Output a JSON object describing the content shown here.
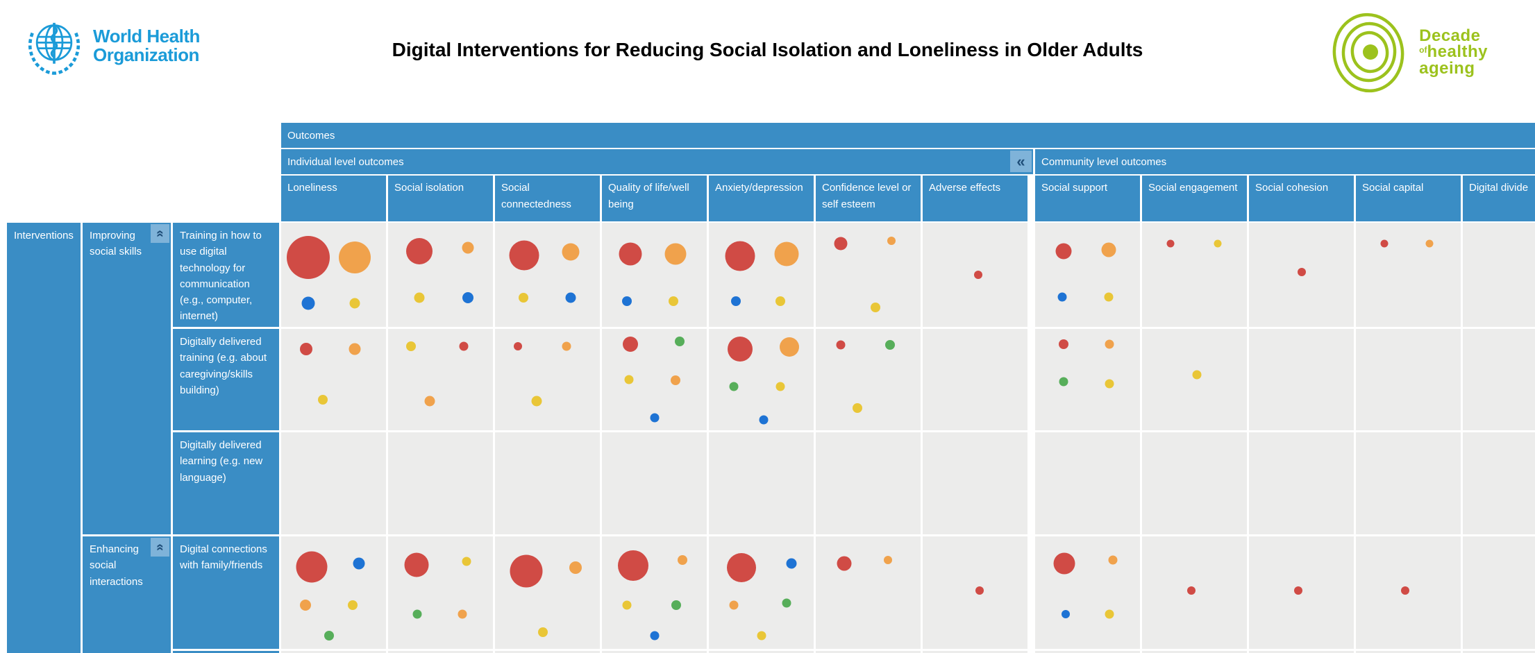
{
  "header": {
    "who_line1": "World Health",
    "who_line2": "Organization",
    "title": "Digital Interventions for Reducing Social Isolation and Loneliness in Older Adults",
    "decade_word1": "Decade",
    "decade_word2": "of",
    "decade_word3": "healthy",
    "decade_word4": "ageing"
  },
  "icons": {
    "collapse_left": "«",
    "collapse_up": "«"
  },
  "matrix": {
    "outcomes_label": "Outcomes",
    "interventions_label": "Interventions",
    "column_groups": [
      {
        "label": "Individual level outcomes",
        "span": 7
      },
      {
        "label": "Community level outcomes",
        "span": 5
      }
    ],
    "row_groups": [
      {
        "label": "Improving social skills",
        "row_start": 0,
        "row_end": 2
      },
      {
        "label": "Enhancing social interactions",
        "row_start": 3,
        "row_end": 3
      }
    ]
  },
  "colors": {
    "header_blue": "#3a8dc5",
    "cell_bg": "#ececeb",
    "collapse_btn_bg": "#7fb3d9",
    "collapse_btn_glyph": "#1f4e79",
    "who_blue": "#1b9bd8",
    "decade_green": "#9cc21d",
    "bubbles": {
      "red": "#d04b45",
      "orange": "#f0a24c",
      "yellow": "#e9c637",
      "blue": "#1e73d4",
      "green": "#57ae5a"
    }
  },
  "chart_data": {
    "type": "heatmap",
    "subtype": "bubble-evidence-gap-map",
    "title": "Digital Interventions for Reducing Social Isolation and Loneliness in Older Adults",
    "legend_visible": false,
    "note": "Bubble color = evidence category; bubble diameter (px) = relative volume of evidence; positions are percent offsets within each cell.",
    "columns": [
      "Loneliness",
      "Social isolation",
      "Social connectedness",
      "Quality of life/well being",
      "Anxiety/depression",
      "Confidence level or self esteem",
      "Adverse effects",
      "Social support",
      "Social engagement",
      "Social cohesion",
      "Social capital",
      "Digital divide"
    ],
    "rows": [
      {
        "group": "Improving social skills",
        "label": "Training in how to use digital technology for communication (e.g., computer, internet)",
        "cells": [
          [
            {
              "c": "red",
              "d": 62,
              "x": 26,
              "y": 33
            },
            {
              "c": "orange",
              "d": 46,
              "x": 70,
              "y": 33
            },
            {
              "c": "blue",
              "d": 19,
              "x": 26,
              "y": 77
            },
            {
              "c": "yellow",
              "d": 15,
              "x": 70,
              "y": 77
            }
          ],
          [
            {
              "c": "red",
              "d": 38,
              "x": 30,
              "y": 27
            },
            {
              "c": "orange",
              "d": 17,
              "x": 76,
              "y": 24
            },
            {
              "c": "yellow",
              "d": 15,
              "x": 30,
              "y": 72
            },
            {
              "c": "blue",
              "d": 16,
              "x": 76,
              "y": 72
            }
          ],
          [
            {
              "c": "red",
              "d": 43,
              "x": 28,
              "y": 31
            },
            {
              "c": "orange",
              "d": 25,
              "x": 72,
              "y": 28
            },
            {
              "c": "yellow",
              "d": 14,
              "x": 27,
              "y": 72
            },
            {
              "c": "blue",
              "d": 15,
              "x": 72,
              "y": 72
            }
          ],
          [
            {
              "c": "red",
              "d": 33,
              "x": 27,
              "y": 30
            },
            {
              "c": "orange",
              "d": 31,
              "x": 70,
              "y": 30
            },
            {
              "c": "blue",
              "d": 14,
              "x": 24,
              "y": 75
            },
            {
              "c": "yellow",
              "d": 14,
              "x": 68,
              "y": 75
            }
          ],
          [
            {
              "c": "red",
              "d": 43,
              "x": 30,
              "y": 32
            },
            {
              "c": "orange",
              "d": 35,
              "x": 74,
              "y": 30
            },
            {
              "c": "blue",
              "d": 14,
              "x": 26,
              "y": 75
            },
            {
              "c": "yellow",
              "d": 14,
              "x": 68,
              "y": 75
            }
          ],
          [
            {
              "c": "red",
              "d": 19,
              "x": 24,
              "y": 20
            },
            {
              "c": "orange",
              "d": 12,
              "x": 72,
              "y": 17
            },
            {
              "c": "yellow",
              "d": 14,
              "x": 57,
              "y": 81
            }
          ],
          [
            {
              "c": "red",
              "d": 12,
              "x": 53,
              "y": 50
            }
          ],
          [
            {
              "c": "red",
              "d": 23,
              "x": 27,
              "y": 27
            },
            {
              "c": "orange",
              "d": 21,
              "x": 70,
              "y": 26
            },
            {
              "c": "blue",
              "d": 13,
              "x": 26,
              "y": 71
            },
            {
              "c": "yellow",
              "d": 13,
              "x": 70,
              "y": 71
            }
          ],
          [
            {
              "c": "red",
              "d": 11,
              "x": 27,
              "y": 20
            },
            {
              "c": "yellow",
              "d": 11,
              "x": 72,
              "y": 20
            }
          ],
          [
            {
              "c": "red",
              "d": 12,
              "x": 50,
              "y": 47
            }
          ],
          [
            {
              "c": "red",
              "d": 11,
              "x": 27,
              "y": 20
            },
            {
              "c": "orange",
              "d": 11,
              "x": 70,
              "y": 20
            }
          ],
          []
        ]
      },
      {
        "group": "Improving social skills",
        "label": "Digitally delivered training (e.g. about caregiving/skills building)",
        "cells": [
          [
            {
              "c": "red",
              "d": 18,
              "x": 24,
              "y": 20
            },
            {
              "c": "orange",
              "d": 17,
              "x": 70,
              "y": 20
            },
            {
              "c": "yellow",
              "d": 14,
              "x": 40,
              "y": 70
            }
          ],
          [
            {
              "c": "yellow",
              "d": 14,
              "x": 22,
              "y": 17
            },
            {
              "c": "red",
              "d": 13,
              "x": 72,
              "y": 17
            },
            {
              "c": "orange",
              "d": 15,
              "x": 40,
              "y": 71
            }
          ],
          [
            {
              "c": "red",
              "d": 12,
              "x": 22,
              "y": 17
            },
            {
              "c": "orange",
              "d": 13,
              "x": 68,
              "y": 17
            },
            {
              "c": "yellow",
              "d": 15,
              "x": 40,
              "y": 71
            }
          ],
          [
            {
              "c": "red",
              "d": 22,
              "x": 27,
              "y": 15
            },
            {
              "c": "green",
              "d": 14,
              "x": 74,
              "y": 12
            },
            {
              "c": "yellow",
              "d": 13,
              "x": 26,
              "y": 50
            },
            {
              "c": "orange",
              "d": 14,
              "x": 70,
              "y": 51
            },
            {
              "c": "blue",
              "d": 13,
              "x": 50,
              "y": 88
            }
          ],
          [
            {
              "c": "red",
              "d": 36,
              "x": 30,
              "y": 20
            },
            {
              "c": "orange",
              "d": 28,
              "x": 77,
              "y": 18
            },
            {
              "c": "green",
              "d": 13,
              "x": 24,
              "y": 57
            },
            {
              "c": "yellow",
              "d": 13,
              "x": 68,
              "y": 57
            },
            {
              "c": "blue",
              "d": 13,
              "x": 52,
              "y": 90
            }
          ],
          [
            {
              "c": "red",
              "d": 13,
              "x": 24,
              "y": 16
            },
            {
              "c": "green",
              "d": 14,
              "x": 71,
              "y": 16
            },
            {
              "c": "yellow",
              "d": 14,
              "x": 40,
              "y": 78
            }
          ],
          [],
          [
            {
              "c": "red",
              "d": 14,
              "x": 27,
              "y": 15
            },
            {
              "c": "orange",
              "d": 13,
              "x": 71,
              "y": 15
            },
            {
              "c": "green",
              "d": 13,
              "x": 27,
              "y": 52
            },
            {
              "c": "yellow",
              "d": 13,
              "x": 71,
              "y": 54
            }
          ],
          [
            {
              "c": "yellow",
              "d": 13,
              "x": 52,
              "y": 45
            }
          ],
          [],
          [],
          []
        ]
      },
      {
        "group": "Improving social skills",
        "label": "Digitally delivered learning (e.g. new language)",
        "cells": [
          [],
          [],
          [],
          [],
          [],
          [],
          [],
          [],
          [],
          [],
          [],
          []
        ]
      },
      {
        "group": "Enhancing social interactions",
        "label": "Digital connections with family/friends",
        "cells": [
          [
            {
              "c": "red",
              "d": 45,
              "x": 29,
              "y": 27
            },
            {
              "c": "blue",
              "d": 17,
              "x": 74,
              "y": 24
            },
            {
              "c": "orange",
              "d": 16,
              "x": 23,
              "y": 61
            },
            {
              "c": "yellow",
              "d": 14,
              "x": 68,
              "y": 61
            },
            {
              "c": "green",
              "d": 14,
              "x": 46,
              "y": 88
            }
          ],
          [
            {
              "c": "red",
              "d": 35,
              "x": 27,
              "y": 25
            },
            {
              "c": "yellow",
              "d": 13,
              "x": 75,
              "y": 22
            },
            {
              "c": "green",
              "d": 13,
              "x": 28,
              "y": 69
            },
            {
              "c": "orange",
              "d": 13,
              "x": 71,
              "y": 69
            }
          ],
          [
            {
              "c": "red",
              "d": 47,
              "x": 30,
              "y": 31
            },
            {
              "c": "orange",
              "d": 18,
              "x": 77,
              "y": 28
            },
            {
              "c": "yellow",
              "d": 14,
              "x": 46,
              "y": 85
            }
          ],
          [
            {
              "c": "red",
              "d": 44,
              "x": 30,
              "y": 26
            },
            {
              "c": "orange",
              "d": 14,
              "x": 77,
              "y": 21
            },
            {
              "c": "yellow",
              "d": 13,
              "x": 24,
              "y": 61
            },
            {
              "c": "green",
              "d": 14,
              "x": 71,
              "y": 61
            },
            {
              "c": "blue",
              "d": 13,
              "x": 50,
              "y": 88
            }
          ],
          [
            {
              "c": "red",
              "d": 42,
              "x": 31,
              "y": 28
            },
            {
              "c": "blue",
              "d": 15,
              "x": 79,
              "y": 24
            },
            {
              "c": "orange",
              "d": 13,
              "x": 24,
              "y": 61
            },
            {
              "c": "green",
              "d": 13,
              "x": 74,
              "y": 59
            },
            {
              "c": "yellow",
              "d": 13,
              "x": 50,
              "y": 88
            }
          ],
          [
            {
              "c": "red",
              "d": 21,
              "x": 27,
              "y": 24
            },
            {
              "c": "orange",
              "d": 12,
              "x": 69,
              "y": 21
            }
          ],
          [
            {
              "c": "red",
              "d": 12,
              "x": 54,
              "y": 48
            }
          ],
          [
            {
              "c": "red",
              "d": 31,
              "x": 28,
              "y": 24
            },
            {
              "c": "orange",
              "d": 13,
              "x": 74,
              "y": 21
            },
            {
              "c": "blue",
              "d": 12,
              "x": 29,
              "y": 69
            },
            {
              "c": "yellow",
              "d": 13,
              "x": 71,
              "y": 69
            }
          ],
          [
            {
              "c": "red",
              "d": 12,
              "x": 47,
              "y": 48
            }
          ],
          [
            {
              "c": "red",
              "d": 12,
              "x": 47,
              "y": 48
            }
          ],
          [
            {
              "c": "red",
              "d": 12,
              "x": 47,
              "y": 48
            }
          ],
          []
        ]
      }
    ]
  }
}
